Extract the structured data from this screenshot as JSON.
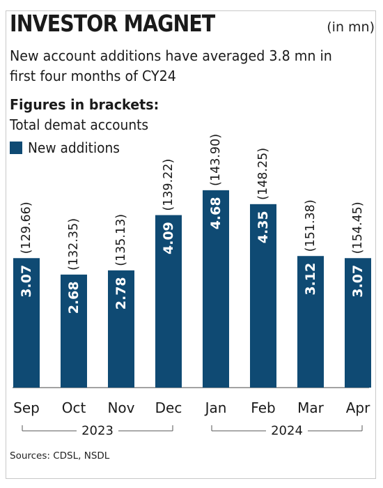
{
  "title": "INVESTOR MAGNET",
  "unit": "(in mn)",
  "subtitle": "New account additions have averaged 3.8 mn in first four months of CY24",
  "note_heading": "Figures in brackets:",
  "note_body": "Total demat accounts",
  "source": "Sources: CDSL, NSDL",
  "colors": {
    "bar": "#0f4a73",
    "text": "#1a1a1a",
    "axis": "#333333"
  },
  "chart_data": {
    "type": "bar",
    "categories": [
      "Sep",
      "Oct",
      "Nov",
      "Dec",
      "Jan",
      "Feb",
      "Mar",
      "Apr"
    ],
    "year_groups": [
      {
        "label": "2023",
        "categories": [
          "Sep",
          "Oct",
          "Nov",
          "Dec"
        ]
      },
      {
        "label": "2024",
        "categories": [
          "Jan",
          "Feb",
          "Mar",
          "Apr"
        ]
      }
    ],
    "series": [
      {
        "name": "New additions",
        "values": [
          3.07,
          2.68,
          2.78,
          4.09,
          4.68,
          4.35,
          3.12,
          3.07
        ]
      }
    ],
    "bracket_labels": [
      "(129.66)",
      "(132.35)",
      "(135.13)",
      "(139.22)",
      "(143.90)",
      "(148.25)",
      "(151.38)",
      "(154.45)"
    ],
    "bracket_values": [
      129.66,
      132.35,
      135.13,
      139.22,
      143.9,
      148.25,
      151.38,
      154.45
    ],
    "data_labels": [
      "3.07",
      "2.68",
      "2.78",
      "4.09",
      "4.68",
      "4.35",
      "3.12",
      "3.07"
    ],
    "ylim": [
      0,
      5
    ],
    "legend": "top-left",
    "grid": false
  }
}
